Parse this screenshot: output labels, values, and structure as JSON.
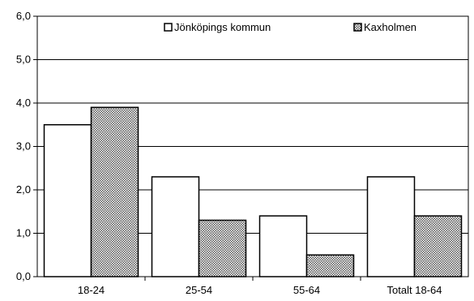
{
  "chart_data": {
    "type": "bar",
    "categories": [
      "18-24",
      "25-54",
      "55-64",
      "Totalt 18-64"
    ],
    "series": [
      {
        "name": "Jönköpings kommun",
        "values": [
          3.5,
          2.3,
          1.4,
          2.3
        ],
        "color": "#ffffff",
        "pattern": "none"
      },
      {
        "name": "Kaxholmen",
        "values": [
          3.9,
          1.3,
          0.5,
          1.4
        ],
        "color": "#b0b0b0",
        "pattern": "checkered"
      }
    ],
    "yticks": [
      "0,0",
      "1,0",
      "2,0",
      "3,0",
      "4,0",
      "5,0",
      "6,0"
    ],
    "ylim": [
      0,
      6
    ],
    "ytick_step": 1,
    "grid": true,
    "legend_position": "top",
    "title": "",
    "xlabel": "",
    "ylabel": ""
  }
}
